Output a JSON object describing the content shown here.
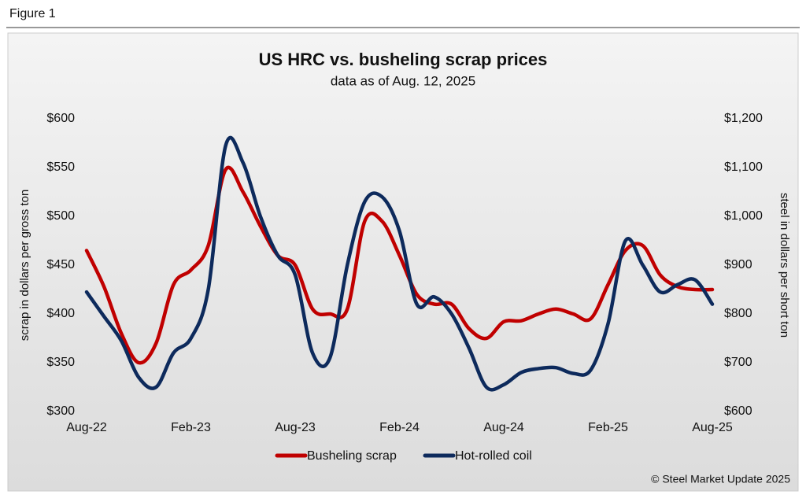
{
  "figure_label": "Figure 1",
  "chart_data": {
    "type": "line",
    "title": "US HRC vs. busheling scrap prices",
    "subtitle": "data as of Aug. 12, 2025",
    "y_label": "scrap in dollars per gross ton",
    "y2_label": "steel in dollars per short ton",
    "source": "© Steel Market Update 2025",
    "categories": [
      "Aug-22",
      null,
      null,
      null,
      null,
      null,
      "Feb-23",
      null,
      null,
      null,
      null,
      null,
      "Aug-23",
      null,
      null,
      null,
      null,
      null,
      "Feb-24",
      null,
      null,
      null,
      null,
      null,
      "Aug-24",
      null,
      null,
      null,
      null,
      null,
      "Feb-25",
      null,
      null,
      null,
      null,
      null,
      "Aug-25"
    ],
    "ylim": [
      300,
      600
    ],
    "yticks": [
      {
        "value": 300,
        "label": "$300"
      },
      {
        "value": 350,
        "label": "$350"
      },
      {
        "value": 400,
        "label": "$400"
      },
      {
        "value": 450,
        "label": "$450"
      },
      {
        "value": 500,
        "label": "$500"
      },
      {
        "value": 550,
        "label": "$550"
      },
      {
        "value": 600,
        "label": "$600"
      }
    ],
    "y2lim": [
      600,
      1200
    ],
    "y2ticks": [
      {
        "value": 600,
        "label": "$600"
      },
      {
        "value": 700,
        "label": "$700"
      },
      {
        "value": 800,
        "label": "$800"
      },
      {
        "value": 900,
        "label": "$900"
      },
      {
        "value": 1000,
        "label": "$1,000"
      },
      {
        "value": 1100,
        "label": "$1,100"
      },
      {
        "value": 1200,
        "label": "$1,200"
      }
    ],
    "legend": "bottom",
    "series": [
      {
        "name": "Busheling scrap",
        "color": "#c00000",
        "values": [
          465,
          428,
          380,
          350,
          370,
          430,
          445,
          470,
          548,
          525,
          490,
          460,
          450,
          405,
          400,
          405,
          495,
          495,
          460,
          420,
          410,
          410,
          385,
          375,
          392,
          393,
          400,
          405,
          400,
          395,
          430,
          465,
          470,
          440,
          428,
          425,
          425
        ]
      },
      {
        "name": "Hot-rolled coil",
        "color": "#0d2a5c",
        "axis": "y2",
        "values": [
          845,
          795,
          745,
          670,
          650,
          720,
          750,
          850,
          1145,
          1110,
          1000,
          920,
          880,
          720,
          710,
          900,
          1030,
          1040,
          970,
          820,
          835,
          800,
          730,
          650,
          655,
          680,
          688,
          690,
          678,
          685,
          780,
          950,
          900,
          845,
          860,
          870,
          820
        ]
      }
    ]
  }
}
